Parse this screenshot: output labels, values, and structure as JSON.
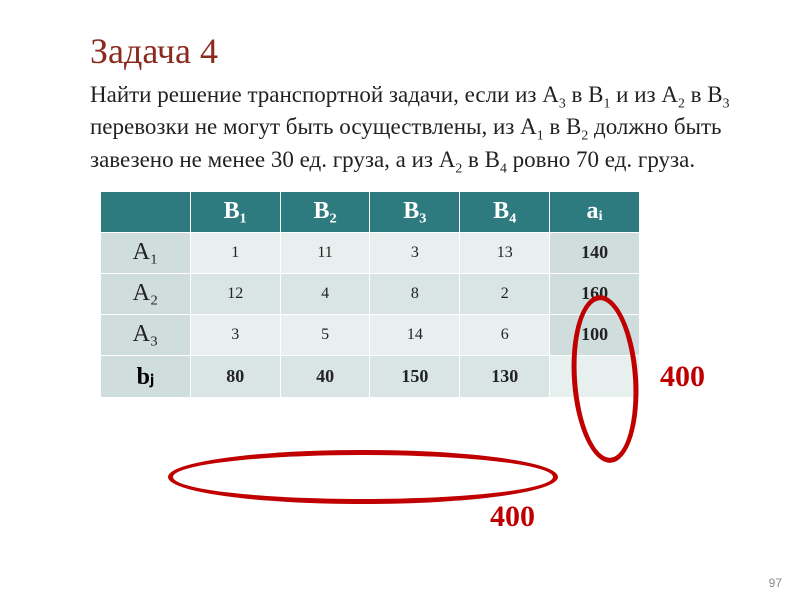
{
  "title": "Задача 4",
  "description_html": "Найти решение транспортной задачи, если из A<sub>3</sub> в B<sub>1</sub> и из A<sub>2</sub> в B<sub>3</sub> перевозки не могут быть осуществлены, из A<sub>1</sub> в B<sub>2</sub> должно быть завезено не менее 30 ед. груза, а из A<sub>2</sub> в B<sub>4</sub> ровно 70 ед. груза.",
  "table": {
    "col_headers": [
      "B₁",
      "B₂",
      "B₃",
      "B₄",
      "aᵢ"
    ],
    "rows": [
      {
        "label": "A₁",
        "cells": [
          "1",
          "11",
          "3",
          "13"
        ],
        "ai": "140"
      },
      {
        "label": "A₂",
        "cells": [
          "12",
          "4",
          "8",
          "2"
        ],
        "ai": "160"
      },
      {
        "label": "A₃",
        "cells": [
          "3",
          "5",
          "14",
          "6"
        ],
        "ai": "100"
      }
    ],
    "bj_label": "bⱼ",
    "bj": [
      "80",
      "40",
      "150",
      "130"
    ]
  },
  "annotations": {
    "sum_right": "400",
    "sum_bottom": "400"
  },
  "colors": {
    "title": "#8b2a1e",
    "header_bg": "#2e7b7f",
    "header_fg": "#ffffff",
    "row_header_bg": "#cfdedd",
    "cell_a_bg": "#e8efef",
    "cell_b_bg": "#d9e4e4",
    "annotation": "#c00000"
  },
  "page_number": "97"
}
